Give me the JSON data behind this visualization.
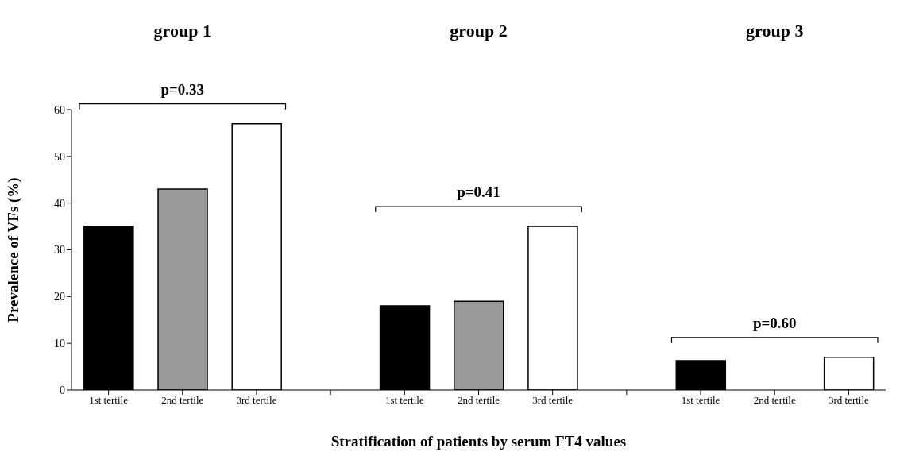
{
  "chart_data": {
    "type": "bar",
    "xlabel": "Stratification of patients by serum FT4 values",
    "ylabel": "Prevalence of VFs (%)",
    "categories": [
      "1st tertile",
      "2nd tertile",
      "3rd tertile",
      null,
      "1st tertile",
      "2nd tertile",
      "3rd tertile",
      null,
      "1st tertile",
      "2nd tertile",
      "3rd tertile"
    ],
    "values": [
      35,
      43,
      57,
      null,
      18,
      19,
      35,
      null,
      6.3,
      0,
      7
    ],
    "colors": [
      "#000000",
      "#9a9a9a",
      "#ffffff",
      null,
      "#000000",
      "#9a9a9a",
      "#ffffff",
      null,
      "#000000",
      "#9a9a9a",
      "#ffffff"
    ],
    "ylim": [
      0,
      60
    ],
    "yticks": [
      0,
      10,
      20,
      30,
      40,
      50,
      60
    ],
    "annotations": [
      "group 1",
      "group 2",
      "group 3",
      "p=0.33",
      "p=0.41",
      "p=0.60"
    ]
  }
}
